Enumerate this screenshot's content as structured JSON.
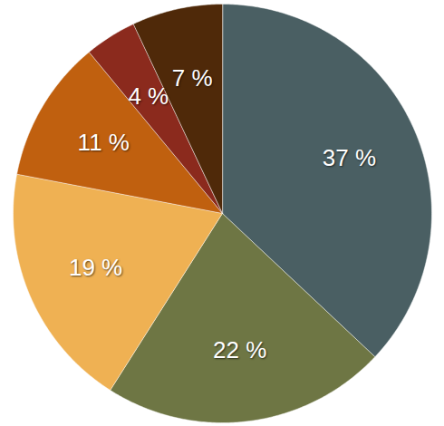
{
  "chart_data": {
    "type": "pie",
    "values": [
      37,
      22,
      19,
      11,
      4,
      7
    ],
    "value_labels": [
      "37 %",
      "22 %",
      "19 %",
      "11 %",
      "4 %",
      "7 %"
    ],
    "colors": [
      "#4a5f63",
      "#6e7644",
      "#efb153",
      "#c0600f",
      "#8b2a1d",
      "#4f2909"
    ],
    "data_labels": true
  }
}
